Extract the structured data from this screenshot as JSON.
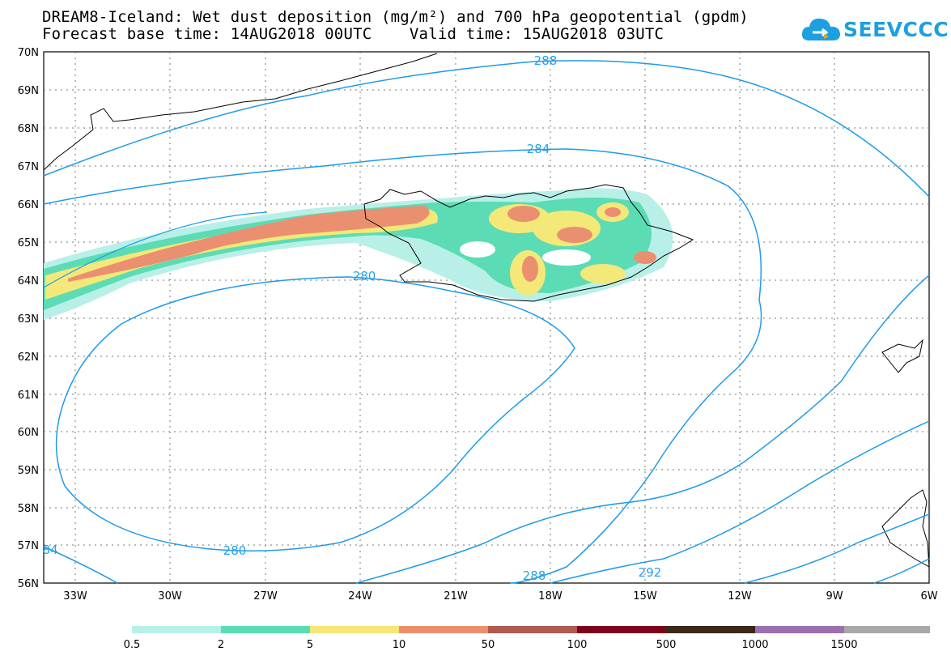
{
  "title_line1": "DREAM8-Iceland: Wet dust deposition (mg/m²) and 700 hPa geopotential (gpdm)",
  "title_line2": "Forecast base time: 14AUG2018 00UTC    Valid time: 15AUG2018 03UTC",
  "logo_text": "SEEVCCC",
  "map": {
    "lat_labels": [
      "70N",
      "69N",
      "68N",
      "67N",
      "66N",
      "65N",
      "64N",
      "63N",
      "62N",
      "61N",
      "60N",
      "59N",
      "58N",
      "57N",
      "56N"
    ],
    "lon_labels": [
      "33W",
      "30W",
      "27W",
      "24W",
      "21W",
      "18W",
      "15W",
      "12W",
      "9W",
      "6W"
    ],
    "contour_labels": [
      "288",
      "284",
      "280",
      "280",
      "288",
      "292",
      "84"
    ],
    "contour_color": "#1e9be8"
  },
  "legend": {
    "labels": [
      "0.5",
      "2",
      "5",
      "10",
      "50",
      "100",
      "500",
      "1000",
      "1500"
    ],
    "colors": [
      "#b8f0e8",
      "#5cdcb4",
      "#f4e878",
      "#ea9070",
      "#b05a50",
      "#800020",
      "#3a2818",
      "#9a70b0",
      "#a8a8a8"
    ]
  }
}
